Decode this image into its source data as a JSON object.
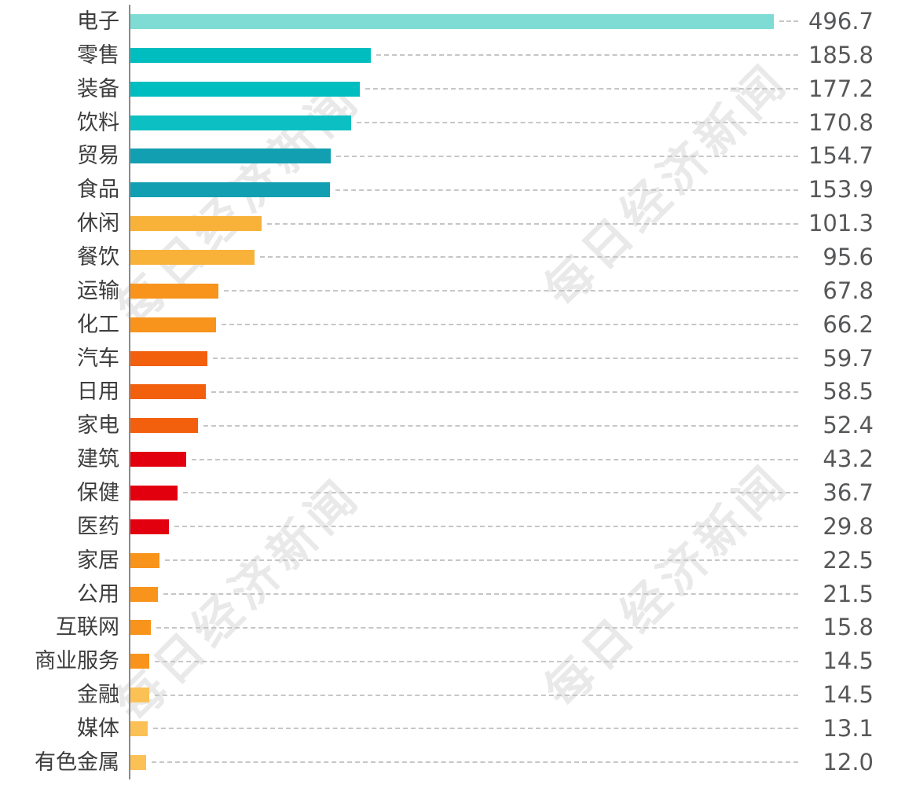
{
  "chart_data": {
    "type": "bar",
    "orientation": "horizontal",
    "title": "",
    "xlabel": "",
    "ylabel": "",
    "value_axis_visible": false,
    "grid": "dashed leader line per row",
    "xlim": [
      0,
      500
    ],
    "max_value": 496.7,
    "categories": [
      "电子",
      "零售",
      "装备",
      "饮料",
      "贸易",
      "食品",
      "休闲",
      "餐饮",
      "运输",
      "化工",
      "汽车",
      "日用",
      "家电",
      "建筑",
      "保健",
      "医药",
      "家居",
      "公用",
      "互联网",
      "商业服务",
      "金融",
      "媒体",
      "有色金属"
    ],
    "values": [
      496.7,
      185.8,
      177.2,
      170.8,
      154.7,
      153.9,
      101.3,
      95.6,
      67.8,
      66.2,
      59.7,
      58.5,
      52.4,
      43.2,
      36.7,
      29.8,
      22.5,
      21.5,
      15.8,
      14.5,
      14.5,
      13.1,
      12.0
    ],
    "value_labels": [
      "496.7",
      "185.8",
      "177.2",
      "170.8",
      "154.7",
      "153.9",
      "101.3",
      "95.6",
      "67.8",
      "66.2",
      "59.7",
      "58.5",
      "52.4",
      "43.2",
      "36.7",
      "29.8",
      "22.5",
      "21.5",
      "15.8",
      "14.5",
      "14.5",
      "13.1",
      "12.0"
    ],
    "bar_colors": [
      "#7EDCD5",
      "#00BDBF",
      "#00BDBF",
      "#0CBFC2",
      "#139FB2",
      "#139FB2",
      "#F9B239",
      "#F9B239",
      "#F8941C",
      "#F8941C",
      "#F2600E",
      "#F2600E",
      "#F2600E",
      "#E2000F",
      "#E2000F",
      "#E2000F",
      "#F8941C",
      "#F8941C",
      "#F8941C",
      "#F8941C",
      "#FBC155",
      "#FBC155",
      "#FBC155"
    ],
    "axis_line_color": "#8a8a8a",
    "leader_line_color": "#c6c6c6",
    "label_color": "#3d3d3d",
    "value_color": "#57585a"
  },
  "watermark": {
    "text": "每日经济新闻"
  }
}
